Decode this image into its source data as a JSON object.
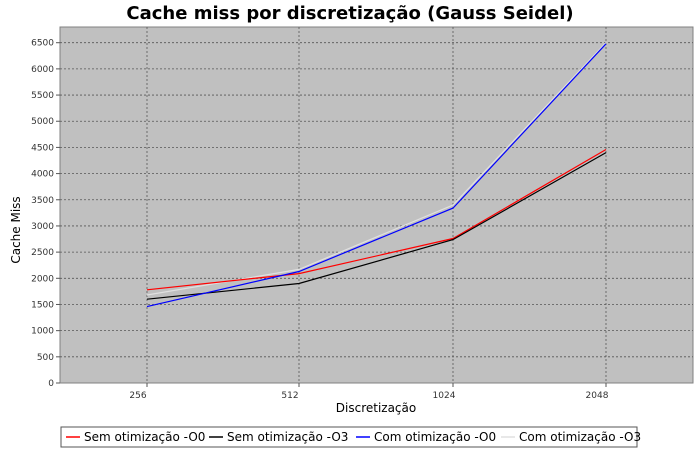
{
  "chart_data": {
    "type": "line",
    "title": "Cache miss por discretização (Gauss Seidel)",
    "xlabel": "Discretização",
    "ylabel": "Cache Miss",
    "categories": [
      "256",
      "512",
      "1024",
      "2048"
    ],
    "ylim": [
      0,
      6800
    ],
    "yticks": [
      0,
      500,
      1000,
      1500,
      2000,
      2500,
      3000,
      3500,
      4000,
      4500,
      5000,
      5500,
      6000,
      6500
    ],
    "grid": true,
    "legend_position": "bottom",
    "series": [
      {
        "name": "Sem otimização -O0",
        "color": "#ff0000",
        "values": [
          1780,
          2090,
          2760,
          4460
        ]
      },
      {
        "name": "Sem otimização -O3",
        "color": "#000000",
        "values": [
          1600,
          1900,
          2740,
          4400
        ]
      },
      {
        "name": "Com otimização -O0",
        "color": "#0000ff",
        "values": [
          1460,
          2130,
          3340,
          6480
        ]
      },
      {
        "name": "Com otimização -O3",
        "color": "#e0e0e0",
        "values": [
          1680,
          2170,
          3400,
          6500
        ]
      }
    ]
  }
}
